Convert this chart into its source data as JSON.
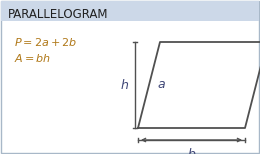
{
  "title": "PARALLELOGRAM",
  "title_bg": "#ccd8e8",
  "bg_color": "#ffffff",
  "border_color": "#a8b8c8",
  "formula1": "$P = 2a + 2b$",
  "formula2": "$A = bh$",
  "formula_color": "#b07818",
  "shape_color": "#505050",
  "label_color": "#404878",
  "title_color": "#202020",
  "fig_width": 2.6,
  "fig_height": 1.54,
  "dpi": 100
}
